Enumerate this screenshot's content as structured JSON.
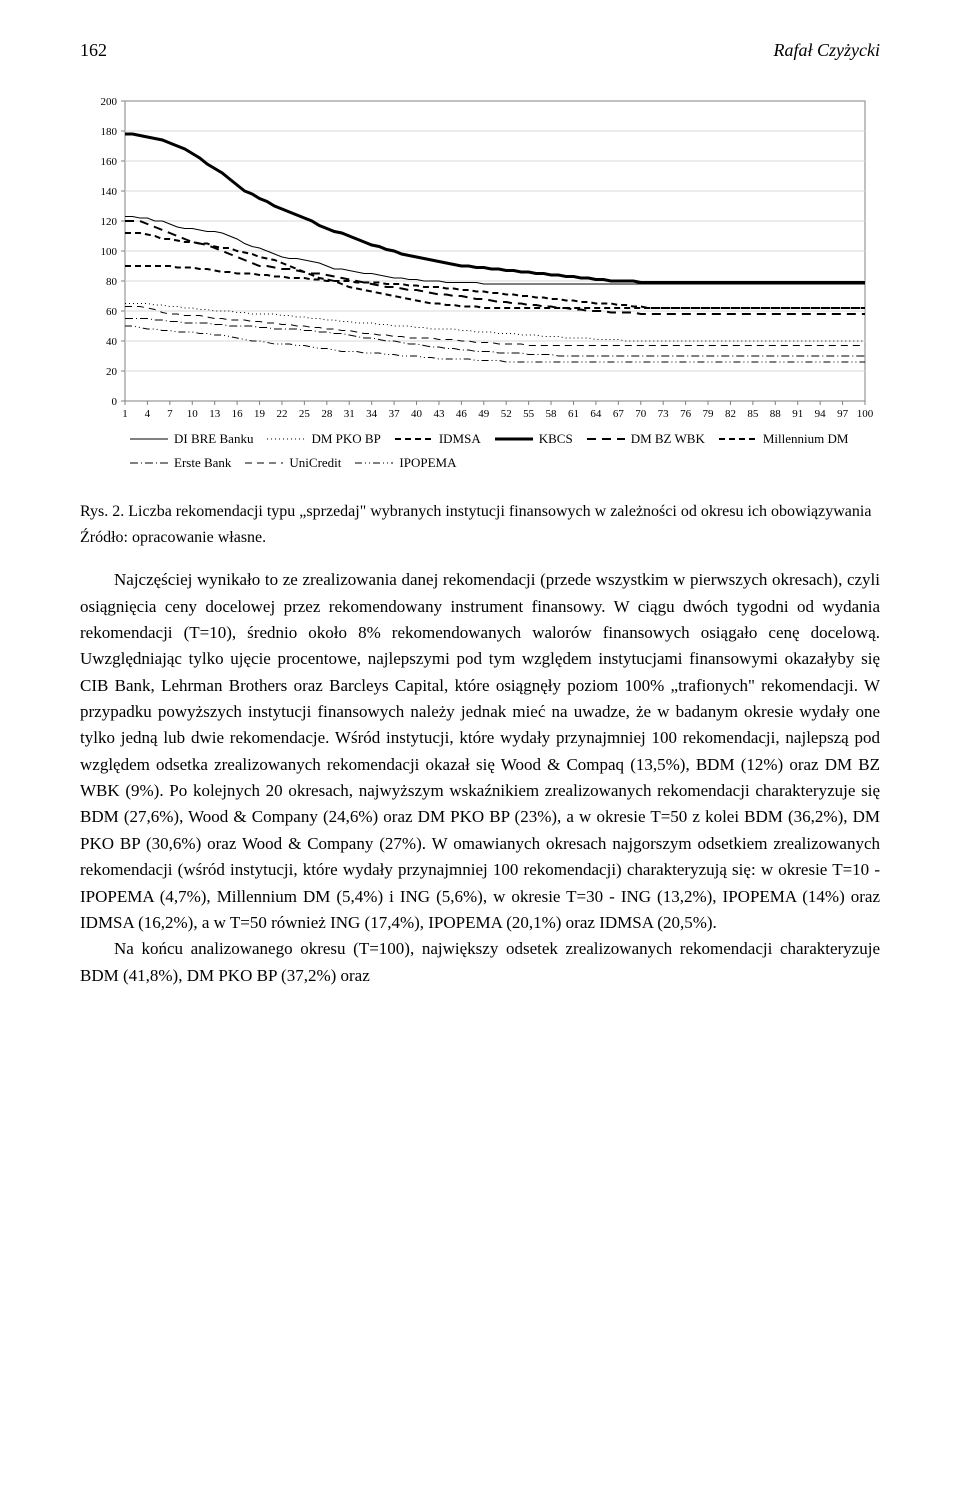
{
  "header": {
    "page_number": "162",
    "author": "Rafał Czyżycki"
  },
  "chart": {
    "type": "line",
    "ylim": [
      0,
      200
    ],
    "ytick_step": 20,
    "yticks": [
      0,
      20,
      40,
      60,
      80,
      100,
      120,
      140,
      160,
      180,
      200
    ],
    "xticks": [
      1,
      4,
      7,
      10,
      13,
      16,
      19,
      22,
      25,
      28,
      31,
      34,
      37,
      40,
      43,
      46,
      49,
      52,
      55,
      58,
      61,
      64,
      67,
      70,
      73,
      76,
      79,
      82,
      85,
      88,
      91,
      94,
      97,
      100
    ],
    "xlim": [
      1,
      100
    ],
    "background_color": "#ffffff",
    "grid_color": "#d9d9d9",
    "axis_color": "#808080",
    "tick_fontsize": 11,
    "series": [
      {
        "name": "DI BRE Banku",
        "stroke": "#000000",
        "stroke_width": 1,
        "dash": "none",
        "data": [
          123,
          123,
          122,
          122,
          120,
          120,
          118,
          116,
          115,
          115,
          114,
          113,
          113,
          112,
          110,
          108,
          105,
          103,
          102,
          100,
          98,
          96,
          95,
          95,
          94,
          93,
          92,
          90,
          88,
          88,
          87,
          86,
          85,
          85,
          84,
          83,
          82,
          82,
          81,
          81,
          80,
          80,
          80,
          79,
          79,
          79,
          79,
          79,
          78,
          78,
          78,
          78,
          78,
          78,
          78,
          78,
          78,
          78,
          78,
          78,
          78,
          78,
          78,
          78,
          78,
          78,
          78,
          78,
          78,
          78,
          78,
          78,
          78,
          78,
          78,
          78,
          78,
          78,
          78,
          78,
          78,
          78,
          78,
          78,
          78,
          78,
          78,
          78,
          78,
          78,
          78,
          78,
          78,
          78,
          78,
          78,
          78,
          78,
          78,
          78
        ]
      },
      {
        "name": "Millennium DM",
        "stroke": "#000000",
        "stroke_width": 2,
        "dash": "6 4",
        "data": [
          112,
          112,
          112,
          111,
          110,
          108,
          108,
          107,
          106,
          106,
          105,
          105,
          103,
          102,
          102,
          100,
          99,
          98,
          96,
          95,
          94,
          92,
          90,
          88,
          86,
          84,
          82,
          81,
          80,
          78,
          76,
          75,
          74,
          73,
          72,
          71,
          70,
          69,
          68,
          67,
          66,
          65,
          65,
          64,
          64,
          63,
          63,
          63,
          62,
          62,
          62,
          62,
          62,
          62,
          62,
          62,
          62,
          62,
          62,
          62,
          62,
          62,
          62,
          62,
          62,
          62,
          62,
          62,
          62,
          62,
          62,
          62,
          62,
          62,
          62,
          62,
          62,
          62,
          62,
          62,
          62,
          62,
          62,
          62,
          62,
          62,
          62,
          62,
          62,
          62,
          62,
          62,
          62,
          62,
          62,
          62,
          62,
          62,
          62,
          62
        ]
      },
      {
        "name": "DM PKO BP",
        "stroke": "#000000",
        "stroke_width": 1,
        "dash": "1 3",
        "data": [
          65,
          65,
          65,
          65,
          64,
          64,
          63,
          63,
          62,
          62,
          61,
          61,
          60,
          60,
          60,
          59,
          59,
          58,
          58,
          58,
          58,
          57,
          57,
          56,
          56,
          55,
          55,
          54,
          54,
          53,
          53,
          52,
          52,
          52,
          51,
          51,
          50,
          50,
          50,
          49,
          49,
          48,
          48,
          48,
          48,
          47,
          47,
          46,
          46,
          46,
          45,
          45,
          45,
          44,
          44,
          44,
          43,
          43,
          43,
          42,
          42,
          42,
          42,
          41,
          41,
          41,
          41,
          40,
          40,
          40,
          40,
          40,
          40,
          40,
          40,
          40,
          40,
          40,
          40,
          40,
          40,
          40,
          40,
          40,
          40,
          40,
          40,
          40,
          40,
          40,
          40,
          40,
          40,
          40,
          40,
          40,
          40,
          40,
          40,
          40
        ]
      },
      {
        "name": "Erste Bank",
        "stroke": "#000000",
        "stroke_width": 1,
        "dash": "8 3 1 3",
        "data": [
          55,
          55,
          55,
          55,
          54,
          54,
          53,
          53,
          52,
          52,
          52,
          52,
          51,
          51,
          50,
          50,
          50,
          50,
          49,
          49,
          48,
          48,
          48,
          48,
          47,
          47,
          46,
          46,
          45,
          45,
          44,
          43,
          42,
          42,
          41,
          40,
          40,
          39,
          38,
          38,
          37,
          36,
          36,
          35,
          35,
          34,
          34,
          33,
          33,
          33,
          32,
          32,
          32,
          32,
          31,
          31,
          31,
          31,
          30,
          30,
          30,
          30,
          30,
          30,
          30,
          30,
          30,
          30,
          30,
          30,
          30,
          30,
          30,
          30,
          30,
          30,
          30,
          30,
          30,
          30,
          30,
          30,
          30,
          30,
          30,
          30,
          30,
          30,
          30,
          30,
          30,
          30,
          30,
          30,
          30,
          30,
          30,
          30,
          30,
          30
        ]
      },
      {
        "name": "IDMSA",
        "stroke": "#000000",
        "stroke_width": 2,
        "dash": "6 4",
        "data": [
          90,
          90,
          90,
          90,
          90,
          90,
          90,
          89,
          89,
          89,
          88,
          88,
          87,
          86,
          86,
          85,
          85,
          85,
          84,
          84,
          83,
          83,
          82,
          82,
          82,
          81,
          81,
          80,
          80,
          80,
          80,
          79,
          79,
          79,
          79,
          78,
          78,
          78,
          77,
          77,
          76,
          76,
          76,
          75,
          75,
          74,
          74,
          73,
          73,
          72,
          72,
          71,
          71,
          70,
          70,
          69,
          69,
          68,
          68,
          67,
          67,
          66,
          66,
          65,
          65,
          65,
          64,
          64,
          63,
          63,
          62,
          62,
          62,
          62,
          62,
          62,
          62,
          62,
          62,
          62,
          62,
          62,
          62,
          62,
          62,
          62,
          62,
          62,
          62,
          62,
          62,
          62,
          62,
          62,
          62,
          62,
          62,
          62,
          62,
          62
        ]
      },
      {
        "name": "UniCredit",
        "stroke": "#000000",
        "stroke_width": 1,
        "dash": "7 5",
        "data": [
          63,
          63,
          63,
          62,
          61,
          59,
          58,
          58,
          57,
          57,
          57,
          56,
          55,
          55,
          54,
          54,
          54,
          53,
          53,
          52,
          52,
          51,
          51,
          50,
          50,
          49,
          49,
          48,
          48,
          47,
          47,
          46,
          45,
          45,
          44,
          44,
          43,
          43,
          42,
          42,
          42,
          42,
          41,
          41,
          41,
          40,
          40,
          39,
          39,
          39,
          38,
          38,
          38,
          38,
          37,
          37,
          37,
          37,
          37,
          37,
          37,
          37,
          37,
          37,
          37,
          37,
          37,
          37,
          37,
          37,
          37,
          37,
          37,
          37,
          37,
          37,
          37,
          37,
          37,
          37,
          37,
          37,
          37,
          37,
          37,
          37,
          37,
          37,
          37,
          37,
          37,
          37,
          37,
          37,
          37,
          37,
          37,
          37,
          37,
          37
        ]
      },
      {
        "name": "KBCS",
        "stroke": "#000000",
        "stroke_width": 3,
        "dash": "none",
        "data": [
          178,
          178,
          177,
          176,
          175,
          174,
          172,
          170,
          168,
          165,
          162,
          158,
          155,
          152,
          148,
          144,
          140,
          138,
          135,
          133,
          130,
          128,
          126,
          124,
          122,
          120,
          117,
          115,
          113,
          112,
          110,
          108,
          106,
          104,
          103,
          101,
          100,
          98,
          97,
          96,
          95,
          94,
          93,
          92,
          91,
          90,
          90,
          89,
          89,
          88,
          88,
          87,
          87,
          86,
          86,
          85,
          85,
          84,
          84,
          83,
          83,
          82,
          82,
          81,
          81,
          80,
          80,
          80,
          80,
          79,
          79,
          79,
          79,
          79,
          79,
          79,
          79,
          79,
          79,
          79,
          79,
          79,
          79,
          79,
          79,
          79,
          79,
          79,
          79,
          79,
          79,
          79,
          79,
          79,
          79,
          79,
          79,
          79,
          79,
          79
        ]
      },
      {
        "name": "IPOPEMA",
        "stroke": "#000000",
        "stroke_width": 1,
        "dash": "7 3 1 3 1 3",
        "data": [
          50,
          50,
          49,
          48,
          48,
          47,
          47,
          46,
          46,
          46,
          45,
          45,
          44,
          44,
          43,
          42,
          41,
          40,
          40,
          39,
          38,
          38,
          38,
          37,
          37,
          36,
          35,
          35,
          34,
          33,
          33,
          33,
          32,
          32,
          32,
          31,
          31,
          30,
          30,
          30,
          29,
          29,
          28,
          28,
          28,
          28,
          28,
          27,
          27,
          27,
          27,
          26,
          26,
          26,
          26,
          26,
          26,
          26,
          26,
          26,
          26,
          26,
          26,
          26,
          26,
          26,
          26,
          26,
          26,
          26,
          26,
          26,
          26,
          26,
          26,
          26,
          26,
          26,
          26,
          26,
          26,
          26,
          26,
          26,
          26,
          26,
          26,
          26,
          26,
          26,
          26,
          26,
          26,
          26,
          26,
          26,
          26,
          26,
          26,
          26
        ]
      },
      {
        "name": "DM BZ WBK",
        "stroke": "#000000",
        "stroke_width": 2,
        "dash": "9 6",
        "data": [
          120,
          120,
          120,
          118,
          116,
          114,
          112,
          110,
          108,
          106,
          105,
          104,
          102,
          100,
          98,
          96,
          94,
          92,
          90,
          90,
          89,
          88,
          88,
          87,
          86,
          85,
          85,
          84,
          83,
          82,
          81,
          80,
          79,
          78,
          77,
          76,
          76,
          75,
          74,
          74,
          73,
          72,
          71,
          71,
          70,
          70,
          69,
          68,
          68,
          67,
          66,
          66,
          65,
          65,
          64,
          64,
          63,
          63,
          62,
          62,
          61,
          61,
          60,
          60,
          60,
          59,
          59,
          59,
          59,
          58,
          58,
          58,
          58,
          58,
          58,
          58,
          58,
          58,
          58,
          58,
          58,
          58,
          58,
          58,
          58,
          58,
          58,
          58,
          58,
          58,
          58,
          58,
          58,
          58,
          58,
          58,
          58,
          58,
          58,
          58
        ]
      }
    ],
    "legend_order": [
      "DI BRE Banku",
      "DM PKO BP",
      "IDMSA",
      "KBCS",
      "DM BZ WBK",
      "Millennium DM",
      "Erste Bank",
      "UniCredit",
      "IPOPEMA"
    ]
  },
  "figure_caption": {
    "label": "Rys. 2.",
    "text": "Liczba rekomendacji typu „sprzedaj\" wybranych instytucji finansowych w zależności od okresu ich obowiązywania"
  },
  "source_line": "Źródło: opracowanie własne.",
  "paragraphs": [
    "Najczęściej wynikało to ze zrealizowania danej rekomendacji (przede wszystkim w pierwszych okresach), czyli osiągnięcia ceny docelowej przez rekomendowany instrument finansowy. W ciągu dwóch tygodni od wydania rekomendacji (T=10), średnio około 8% rekomendowanych walorów finansowych osiągało cenę docelową. Uwzględniając tylko ujęcie procentowe, najlepszymi pod tym względem instytucjami finansowymi okazałyby się CIB Bank, Lehrman Brothers oraz Barcleys Capital, które osiągnęły poziom 100% „trafionych\" rekomendacji. W przypadku powyższych instytucji finansowych należy jednak mieć na uwadze, że w badanym okresie wydały one tylko jedną lub dwie rekomendacje. Wśród instytucji, które wydały przynajmniej 100 rekomendacji, najlepszą pod względem odsetka zrealizowanych rekomendacji okazał się Wood & Compaq (13,5%), BDM (12%) oraz DM BZ WBK (9%). Po kolejnych 20 okresach, najwyższym wskaźnikiem zrealizowanych rekomendacji charakteryzuje się BDM (27,6%), Wood & Company (24,6%) oraz DM PKO BP (23%), a w okresie T=50 z kolei BDM (36,2%), DM PKO BP (30,6%) oraz Wood & Company (27%). W omawianych okresach najgorszym odsetkiem zrealizowanych rekomendacji (wśród instytucji, które wydały przynajmniej 100 rekomendacji) charakteryzują się: w okresie T=10 - IPOPEMA (4,7%), Millennium DM (5,4%) i ING (5,6%), w okresie T=30 - ING (13,2%), IPOPEMA (14%) oraz IDMSA (16,2%), a w T=50 również ING (17,4%), IPOPEMA (20,1%) oraz IDMSA (20,5%).",
    "Na końcu analizowanego okresu (T=100), największy odsetek zrealizowanych rekomendacji charakteryzuje BDM (41,8%), DM PKO BP (37,2%) oraz"
  ]
}
